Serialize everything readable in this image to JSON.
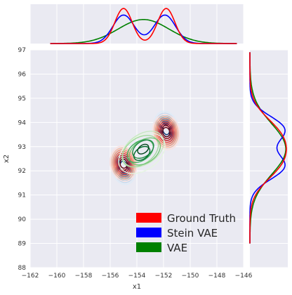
{
  "chart_data": {
    "type": "joint-density",
    "xlabel": "x1",
    "ylabel": "x2",
    "xlim": [
      -162,
      -146
    ],
    "ylim": [
      88,
      97
    ],
    "xticks": [
      "−162",
      "−160",
      "−158",
      "−156",
      "−154",
      "−152",
      "−150",
      "−148",
      "−146"
    ],
    "yticks": [
      "88",
      "89",
      "90",
      "91",
      "92",
      "93",
      "94",
      "95",
      "96",
      "97"
    ],
    "grid": true,
    "legend_position": "lower-right",
    "series": [
      {
        "name": "Ground Truth",
        "color": "#ff0000",
        "modes": [
          {
            "x1": -155.0,
            "x2": 92.3
          },
          {
            "x1": -151.8,
            "x2": 93.6
          }
        ]
      },
      {
        "name": "Stein VAE",
        "color": "#0000ff",
        "modes": [
          {
            "x1": -155.0,
            "x2": 92.2
          },
          {
            "x1": -151.8,
            "x2": 93.7
          }
        ]
      },
      {
        "name": "VAE",
        "color": "#008000",
        "modes": [
          {
            "x1": -153.6,
            "x2": 92.8
          }
        ]
      }
    ],
    "marginal_x": {
      "Ground Truth": [
        {
          "mean": -155.0,
          "sd": 0.65,
          "w": 0.5
        },
        {
          "mean": -151.8,
          "sd": 0.65,
          "w": 0.5
        }
      ],
      "Stein VAE": [
        {
          "mean": -155.0,
          "sd": 0.8,
          "w": 0.5
        },
        {
          "mean": -151.9,
          "sd": 0.8,
          "w": 0.5
        }
      ],
      "VAE": [
        {
          "mean": -153.5,
          "sd": 1.9,
          "w": 1.0
        }
      ]
    },
    "marginal_y": {
      "Ground Truth": [
        {
          "mean": 92.3,
          "sd": 0.75,
          "w": 0.5
        },
        {
          "mean": 93.5,
          "sd": 0.75,
          "w": 0.5
        }
      ],
      "Stein VAE": [
        {
          "mean": 92.2,
          "sd": 0.55,
          "w": 0.5
        },
        {
          "mean": 93.7,
          "sd": 0.55,
          "w": 0.5
        }
      ],
      "VAE": [
        {
          "mean": 92.9,
          "sd": 1.05,
          "w": 1.0
        }
      ]
    }
  }
}
